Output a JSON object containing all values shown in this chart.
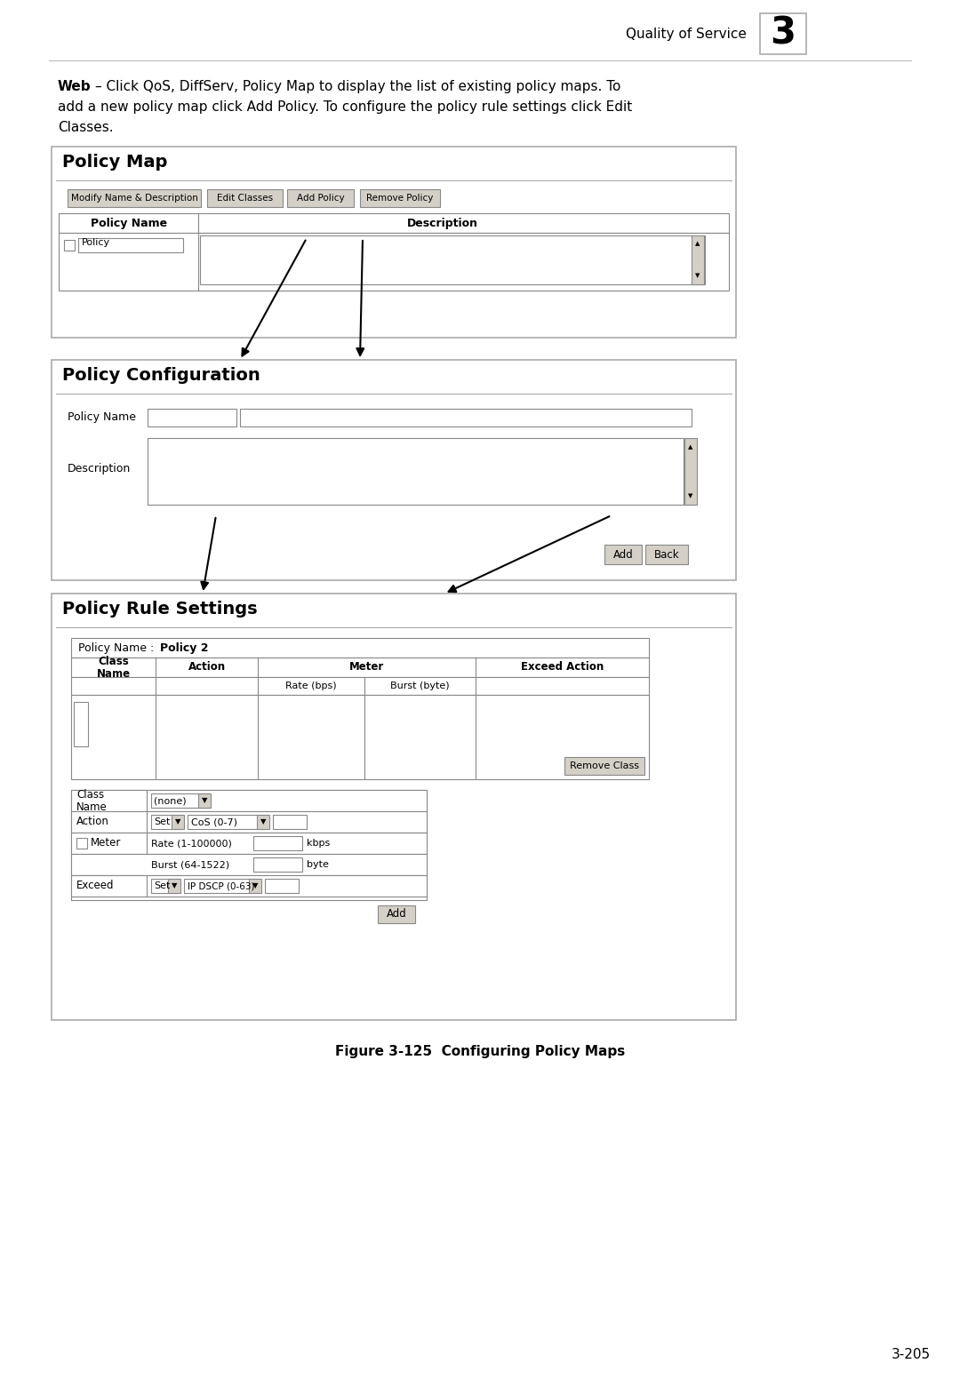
{
  "page_title": "Quality of Service",
  "chapter_num": "3",
  "body_text_bold": "Web",
  "body_text_rest": "– Click QoS, DiffServ, Policy Map to display the list of existing policy maps. To add a new policy map click Add Policy. To configure the policy rule settings click Edit Classes.",
  "figure_caption": "Figure 3-125  Configuring Policy Maps",
  "page_num": "3-205",
  "bg_color": "#ffffff",
  "section1_title": "Policy Map",
  "section2_title": "Policy Configuration",
  "section3_title": "Policy Rule Settings",
  "button_bg": "#d4d0c8",
  "box_border": "#aaaaaa",
  "inner_border": "#888888"
}
